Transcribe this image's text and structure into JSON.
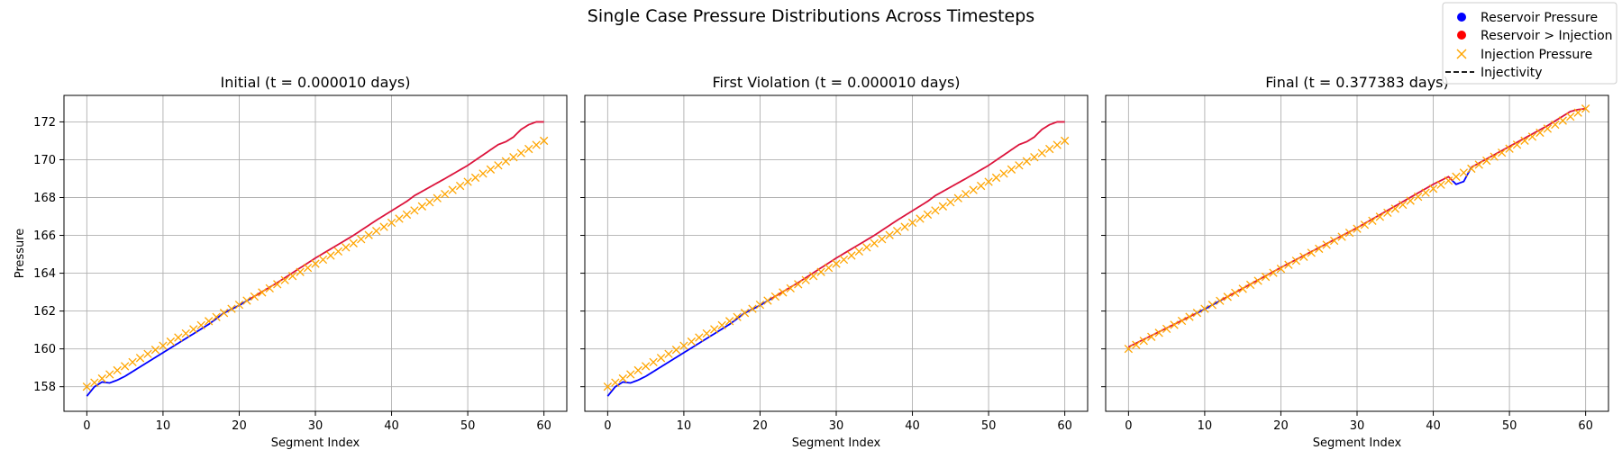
{
  "figure": {
    "suptitle": "Single Case Pressure Distributions Across Timesteps",
    "legend": {
      "placement": "top-right",
      "entries": [
        {
          "label": "Reservoir Pressure",
          "marker": "circle",
          "color": "#0000ff"
        },
        {
          "label": "Reservoir > Injection",
          "marker": "circle",
          "color": "#ff0000"
        },
        {
          "label": "Injection Pressure",
          "marker": "x",
          "color": "#ffa500"
        },
        {
          "label": "Injectivity",
          "marker": "dashed-line",
          "color": "#000000"
        }
      ]
    }
  },
  "colors": {
    "reservoir": "#0000ff",
    "violation": "#dc143c",
    "injection": "#ffa500",
    "grid": "#b0b0b0"
  },
  "chart_data": [
    {
      "type": "line",
      "title": "Initial (t = 0.000010 days)",
      "xlabel": "Segment Index",
      "ylabel": "Pressure",
      "xlim": [
        -3,
        63
      ],
      "ylim": [
        156.7,
        173.4
      ],
      "xticks": [
        0,
        10,
        20,
        30,
        40,
        50,
        60
      ],
      "yticks": [
        158,
        160,
        162,
        164,
        166,
        168,
        170,
        172
      ],
      "grid": true,
      "injection": {
        "start": 158.0,
        "end": 171.0
      },
      "reservoir_points": [
        [
          0,
          157.5
        ],
        [
          1,
          158.0
        ],
        [
          2,
          158.25
        ],
        [
          3,
          158.2
        ],
        [
          4,
          158.35
        ],
        [
          5,
          158.55
        ],
        [
          8,
          159.3
        ],
        [
          12,
          160.3
        ],
        [
          16,
          161.3
        ],
        [
          18,
          161.9
        ],
        [
          20,
          162.3
        ],
        [
          25,
          163.5
        ],
        [
          30,
          164.8
        ],
        [
          35,
          166.0
        ],
        [
          38,
          166.8
        ],
        [
          40,
          167.3
        ],
        [
          42,
          167.8
        ],
        [
          43,
          168.1
        ],
        [
          47,
          169.0
        ],
        [
          50,
          169.7
        ],
        [
          54,
          170.8
        ],
        [
          55,
          170.95
        ],
        [
          56,
          171.2
        ],
        [
          57,
          171.6
        ],
        [
          58,
          171.85
        ],
        [
          59,
          172.0
        ],
        [
          60,
          172.0
        ]
      ]
    },
    {
      "type": "line",
      "title": "First Violation (t = 0.000010 days)",
      "xlabel": "Segment Index",
      "ylabel": "",
      "xlim": [
        -3,
        63
      ],
      "ylim": [
        156.7,
        173.4
      ],
      "xticks": [
        0,
        10,
        20,
        30,
        40,
        50,
        60
      ],
      "yticks": [
        158,
        160,
        162,
        164,
        166,
        168,
        170,
        172
      ],
      "grid": true,
      "injection": {
        "start": 158.0,
        "end": 171.0
      },
      "reservoir_points": [
        [
          0,
          157.5
        ],
        [
          1,
          158.0
        ],
        [
          2,
          158.25
        ],
        [
          3,
          158.2
        ],
        [
          4,
          158.35
        ],
        [
          5,
          158.55
        ],
        [
          8,
          159.3
        ],
        [
          12,
          160.3
        ],
        [
          16,
          161.3
        ],
        [
          18,
          161.9
        ],
        [
          20,
          162.3
        ],
        [
          25,
          163.5
        ],
        [
          30,
          164.8
        ],
        [
          35,
          166.0
        ],
        [
          38,
          166.8
        ],
        [
          40,
          167.3
        ],
        [
          42,
          167.8
        ],
        [
          43,
          168.1
        ],
        [
          47,
          169.0
        ],
        [
          50,
          169.7
        ],
        [
          54,
          170.8
        ],
        [
          55,
          170.95
        ],
        [
          56,
          171.2
        ],
        [
          57,
          171.6
        ],
        [
          58,
          171.85
        ],
        [
          59,
          172.0
        ],
        [
          60,
          172.0
        ]
      ]
    },
    {
      "type": "line",
      "title": "Final (t = 0.377383 days)",
      "xlabel": "Segment Index",
      "ylabel": "",
      "xlim": [
        -3,
        63
      ],
      "ylim": [
        156.7,
        173.4
      ],
      "xticks": [
        0,
        10,
        20,
        30,
        40,
        50,
        60
      ],
      "yticks": [
        158,
        160,
        162,
        164,
        166,
        168,
        170,
        172
      ],
      "grid": true,
      "injection": {
        "start": 160.0,
        "end": 172.7
      },
      "reservoir_points": [
        [
          0,
          160.1
        ],
        [
          10,
          162.1
        ],
        [
          20,
          164.3
        ],
        [
          30,
          166.4
        ],
        [
          40,
          168.7
        ],
        [
          42,
          169.1
        ],
        [
          43,
          168.7
        ],
        [
          44,
          168.85
        ],
        [
          45,
          169.6
        ],
        [
          50,
          170.7
        ],
        [
          55,
          171.8
        ],
        [
          58,
          172.55
        ],
        [
          59,
          172.65
        ],
        [
          60,
          172.7
        ]
      ]
    }
  ]
}
